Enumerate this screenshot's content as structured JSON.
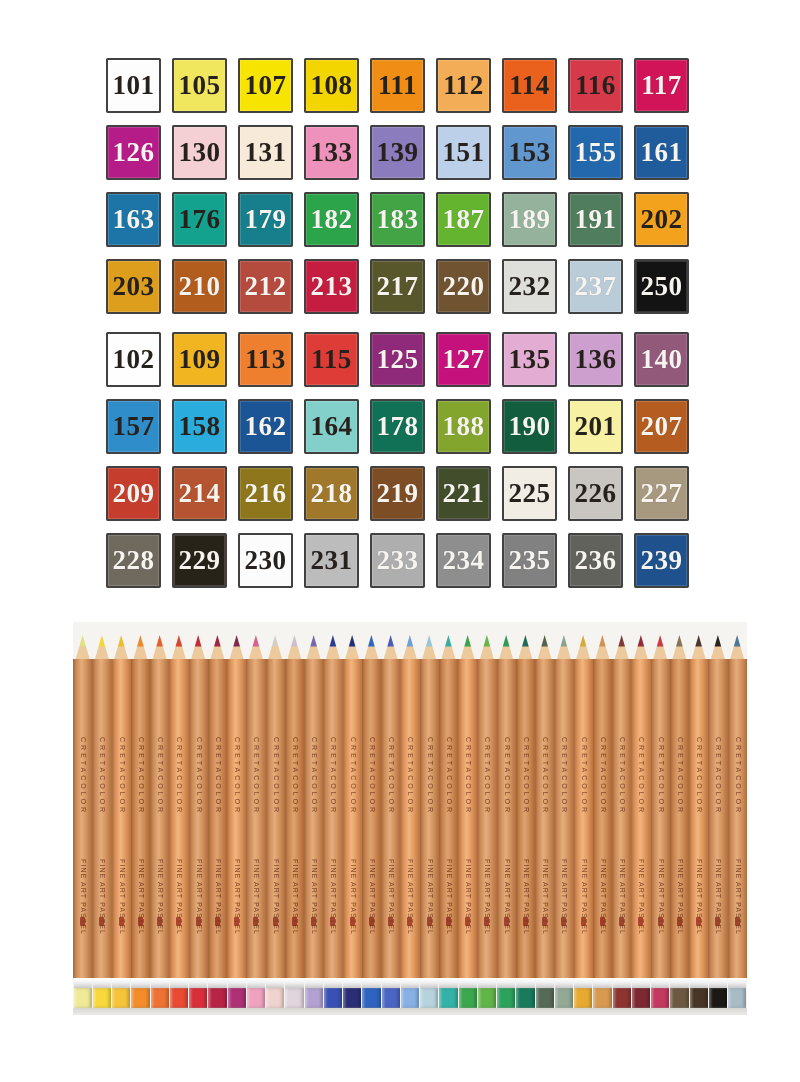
{
  "page": {
    "background": "#ffffff"
  },
  "color_chart": {
    "border_color": "#414141",
    "rows": [
      [
        {
          "num": "101",
          "bg": "#fdfdfd",
          "fg": "dark"
        },
        {
          "num": "105",
          "bg": "#f1e75e",
          "fg": "dark"
        },
        {
          "num": "107",
          "bg": "#f7e400",
          "fg": "dark"
        },
        {
          "num": "108",
          "bg": "#f3d600",
          "fg": "dark"
        },
        {
          "num": "111",
          "bg": "#ef8d15",
          "fg": "dark"
        },
        {
          "num": "112",
          "bg": "#f3ad56",
          "fg": "dark"
        },
        {
          "num": "114",
          "bg": "#e9611d",
          "fg": "dark"
        },
        {
          "num": "116",
          "bg": "#d6394a",
          "fg": "dark"
        },
        {
          "num": "117",
          "bg": "#d01457",
          "fg": "light"
        }
      ],
      [
        {
          "num": "126",
          "bg": "#b61c87",
          "fg": "light"
        },
        {
          "num": "130",
          "bg": "#f4cfd4",
          "fg": "dark"
        },
        {
          "num": "131",
          "bg": "#f8ead9",
          "fg": "dark"
        },
        {
          "num": "133",
          "bg": "#ef92bb",
          "fg": "dark"
        },
        {
          "num": "139",
          "bg": "#8a7cbd",
          "fg": "dark"
        },
        {
          "num": "151",
          "bg": "#bdd0e9",
          "fg": "dark"
        },
        {
          "num": "153",
          "bg": "#6097cf",
          "fg": "dark"
        },
        {
          "num": "155",
          "bg": "#2368ad",
          "fg": "light"
        },
        {
          "num": "161",
          "bg": "#205c9c",
          "fg": "light"
        }
      ],
      [
        {
          "num": "163",
          "bg": "#1c75a6",
          "fg": "light"
        },
        {
          "num": "176",
          "bg": "#13a28e",
          "fg": "dark"
        },
        {
          "num": "179",
          "bg": "#177f8b",
          "fg": "light"
        },
        {
          "num": "182",
          "bg": "#2ba44a",
          "fg": "light"
        },
        {
          "num": "183",
          "bg": "#42a444",
          "fg": "light"
        },
        {
          "num": "187",
          "bg": "#65b42f",
          "fg": "light"
        },
        {
          "num": "189",
          "bg": "#94b29c",
          "fg": "light"
        },
        {
          "num": "191",
          "bg": "#507d5d",
          "fg": "light"
        },
        {
          "num": "202",
          "bg": "#f2a21d",
          "fg": "dark"
        }
      ],
      [
        {
          "num": "203",
          "bg": "#dd9e1d",
          "fg": "dark"
        },
        {
          "num": "210",
          "bg": "#b25d1e",
          "fg": "light"
        },
        {
          "num": "212",
          "bg": "#b54a3f",
          "fg": "light"
        },
        {
          "num": "213",
          "bg": "#c51d41",
          "fg": "light"
        },
        {
          "num": "217",
          "bg": "#57572b",
          "fg": "light"
        },
        {
          "num": "220",
          "bg": "#705331",
          "fg": "light"
        },
        {
          "num": "232",
          "bg": "#dededa",
          "fg": "dark"
        },
        {
          "num": "237",
          "bg": "#bbccd9",
          "fg": "light"
        },
        {
          "num": "250",
          "bg": "#131313",
          "fg": "light"
        }
      ],
      [
        {
          "num": "102",
          "bg": "#fefefe",
          "fg": "dark"
        },
        {
          "num": "109",
          "bg": "#f0b520",
          "fg": "dark"
        },
        {
          "num": "113",
          "bg": "#ee7f2f",
          "fg": "dark"
        },
        {
          "num": "115",
          "bg": "#de3c36",
          "fg": "dark"
        },
        {
          "num": "125",
          "bg": "#8f2979",
          "fg": "light"
        },
        {
          "num": "127",
          "bg": "#c5117b",
          "fg": "light"
        },
        {
          "num": "135",
          "bg": "#e3acd3",
          "fg": "dark"
        },
        {
          "num": "136",
          "bg": "#cc9fcf",
          "fg": "dark"
        },
        {
          "num": "140",
          "bg": "#92597b",
          "fg": "light"
        }
      ],
      [
        {
          "num": "157",
          "bg": "#2f8dc9",
          "fg": "dark"
        },
        {
          "num": "158",
          "bg": "#2aacdd",
          "fg": "dark"
        },
        {
          "num": "162",
          "bg": "#1b5595",
          "fg": "light"
        },
        {
          "num": "164",
          "bg": "#83cfc9",
          "fg": "dark"
        },
        {
          "num": "178",
          "bg": "#107156",
          "fg": "light"
        },
        {
          "num": "188",
          "bg": "#83a52d",
          "fg": "light"
        },
        {
          "num": "190",
          "bg": "#125d3d",
          "fg": "light"
        },
        {
          "num": "201",
          "bg": "#f6f1a3",
          "fg": "dark"
        },
        {
          "num": "207",
          "bg": "#b55d21",
          "fg": "light"
        }
      ],
      [
        {
          "num": "209",
          "bg": "#c53e2d",
          "fg": "light"
        },
        {
          "num": "214",
          "bg": "#b55430",
          "fg": "light"
        },
        {
          "num": "216",
          "bg": "#8d761c",
          "fg": "light"
        },
        {
          "num": "218",
          "bg": "#9f782c",
          "fg": "light"
        },
        {
          "num": "219",
          "bg": "#7d4d25",
          "fg": "light"
        },
        {
          "num": "221",
          "bg": "#424d2c",
          "fg": "light"
        },
        {
          "num": "225",
          "bg": "#f1ede5",
          "fg": "dark"
        },
        {
          "num": "226",
          "bg": "#c9c5c1",
          "fg": "dark"
        },
        {
          "num": "227",
          "bg": "#a7997f",
          "fg": "light"
        }
      ],
      [
        {
          "num": "228",
          "bg": "#70695e",
          "fg": "light"
        },
        {
          "num": "229",
          "bg": "#282319",
          "fg": "light"
        },
        {
          "num": "230",
          "bg": "#fcfcfc",
          "fg": "dark"
        },
        {
          "num": "231",
          "bg": "#bcbcbc",
          "fg": "dark"
        },
        {
          "num": "233",
          "bg": "#aeaeae",
          "fg": "light"
        },
        {
          "num": "234",
          "bg": "#8e8e8e",
          "fg": "light"
        },
        {
          "num": "235",
          "bg": "#818181",
          "fg": "light"
        },
        {
          "num": "236",
          "bg": "#60625b",
          "fg": "light"
        },
        {
          "num": "239",
          "bg": "#1f528c",
          "fg": "light"
        }
      ]
    ]
  },
  "pencils_section": {
    "background": "#f6f4f1",
    "brand": "CRETACOLOR",
    "product": "FINE ART PASTEL",
    "wood_color": "#d3935f",
    "pencils": [
      {
        "name": "pale-yellow",
        "tip": "#e3df86",
        "band": "#f0e998"
      },
      {
        "name": "yellow",
        "tip": "#f1d73b",
        "band": "#f8d83d"
      },
      {
        "name": "golden-yellow",
        "tip": "#edbd31",
        "band": "#f5c439"
      },
      {
        "name": "orange",
        "tip": "#e98a2c",
        "band": "#f28d2a"
      },
      {
        "name": "orange-red",
        "tip": "#e3602e",
        "band": "#ee7233"
      },
      {
        "name": "red",
        "tip": "#d94332",
        "band": "#e84a32"
      },
      {
        "name": "crimson",
        "tip": "#c22e3a",
        "band": "#d92f3a"
      },
      {
        "name": "dark-red",
        "tip": "#9f2741",
        "band": "#b82446"
      },
      {
        "name": "wine",
        "tip": "#7d2a4b",
        "band": "#ae3075"
      },
      {
        "name": "rose-pink",
        "tip": "#d3638d",
        "band": "#efa2be"
      },
      {
        "name": "pale-flesh",
        "tip": "#d7cec7",
        "band": "#f1d3cd"
      },
      {
        "name": "pale-lilac-grey",
        "tip": "#ccc0ca",
        "band": "#e1d4dc"
      },
      {
        "name": "violet",
        "tip": "#7866aa",
        "band": "#b2a2d1"
      },
      {
        "name": "royal-blue",
        "tip": "#2c3c8f",
        "band": "#3951b5"
      },
      {
        "name": "indigo",
        "tip": "#252f75",
        "band": "#2a2e76"
      },
      {
        "name": "blue",
        "tip": "#2e66c0",
        "band": "#2f63c0"
      },
      {
        "name": "blue-violet",
        "tip": "#4c5cb4",
        "band": "#4b65c3"
      },
      {
        "name": "light-blue",
        "tip": "#6f9fda",
        "band": "#87b0e4"
      },
      {
        "name": "pale-blue",
        "tip": "#9cc6d4",
        "band": "#b6d3dd"
      },
      {
        "name": "teal",
        "tip": "#39aca0",
        "band": "#35b2a7"
      },
      {
        "name": "green",
        "tip": "#3ca24e",
        "band": "#3ba74f"
      },
      {
        "name": "light-green",
        "tip": "#66b44a",
        "band": "#62b549"
      },
      {
        "name": "emerald",
        "tip": "#2e9c58",
        "band": "#2ca25c"
      },
      {
        "name": "dark-teal",
        "tip": "#1d6b56",
        "band": "#1a7a5c"
      },
      {
        "name": "dark-olive",
        "tip": "#57624e",
        "band": "#566a57"
      },
      {
        "name": "sage",
        "tip": "#8ca28e",
        "band": "#92a996"
      },
      {
        "name": "gold-ochre",
        "tip": "#d8a93a",
        "band": "#e7aa31"
      },
      {
        "name": "tan",
        "tip": "#ce9456",
        "band": "#d89a51"
      },
      {
        "name": "maroon-brown",
        "tip": "#7e3938",
        "band": "#8e3431"
      },
      {
        "name": "dark-maroon",
        "tip": "#922e3c",
        "band": "#7d2933"
      },
      {
        "name": "crimson-red",
        "tip": "#c93844",
        "band": "#c23a5f"
      },
      {
        "name": "taupe-brown",
        "tip": "#857356",
        "band": "#6d5941"
      },
      {
        "name": "dark-brown",
        "tip": "#4a382c",
        "band": "#473526"
      },
      {
        "name": "black",
        "tip": "#28241e",
        "band": "#1c1915"
      },
      {
        "name": "steel-blue",
        "tip": "#4e7796",
        "band": "#a8bcc8"
      }
    ]
  }
}
